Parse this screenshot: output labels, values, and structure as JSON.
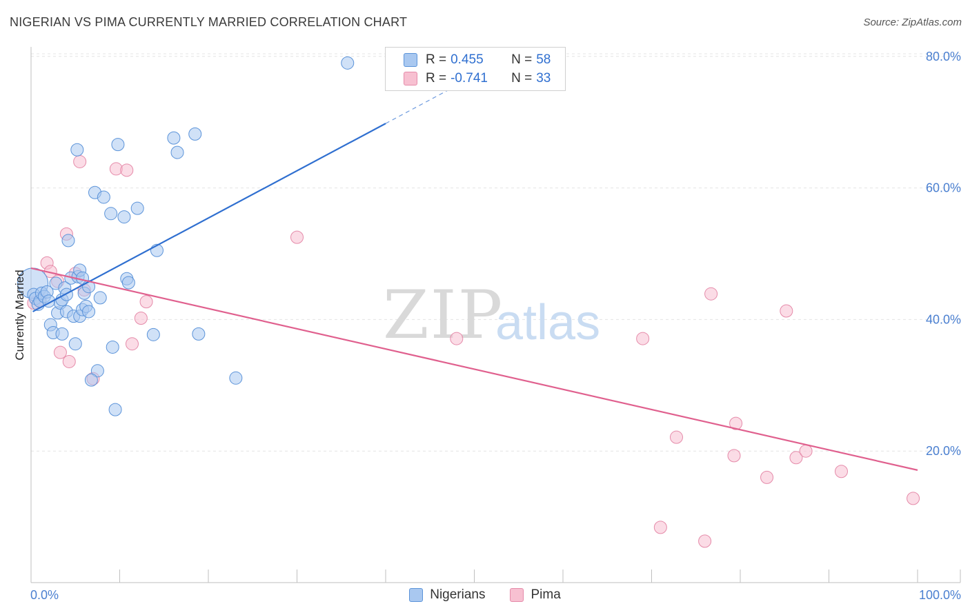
{
  "title": "NIGERIAN VS PIMA CURRENTLY MARRIED CORRELATION CHART",
  "source": "Source: ZipAtlas.com",
  "watermark": {
    "zip": "ZIP",
    "atlas": "atlas"
  },
  "colors": {
    "blue_fill": "#a9c8f0",
    "blue_stroke": "#5b93d9",
    "blue_line": "#2f6fd0",
    "pink_fill": "#f7c0d1",
    "pink_stroke": "#e58aa9",
    "pink_line": "#e0608e",
    "grid": "#e4e4e4",
    "tick_text": "#4a7fd0"
  },
  "legend": {
    "rows": [
      {
        "r_label": "R =",
        "r_value": "0.455",
        "n_label": "N =",
        "n_value": "58"
      },
      {
        "r_label": "R =",
        "r_value": "-0.741",
        "n_label": "N =",
        "n_value": "33"
      }
    ]
  },
  "bottom_legend": {
    "series1": "Nigerians",
    "series2": "Pima"
  },
  "chart_data": {
    "type": "scatter",
    "title": "NIGERIAN VS PIMA CURRENTLY MARRIED CORRELATION CHART",
    "xlabel": "",
    "ylabel": "Currently Married",
    "xlim": [
      0,
      100
    ],
    "ylim": [
      0,
      82
    ],
    "x_tick_labels": [
      "0.0%",
      "100.0%"
    ],
    "y_ticks": [
      20,
      40,
      60,
      80
    ],
    "y_tick_labels": [
      "20.0%",
      "40.0%",
      "60.0%",
      "80.0%"
    ],
    "series": [
      {
        "name": "Nigerians",
        "trend": {
          "x0": 0.2,
          "y0": 41.2,
          "x1": 40.0,
          "y1": 69.8,
          "dash_x1": 50.0,
          "dash_y1": 77.0
        },
        "points": [
          [
            0.2,
            45.5,
            22
          ],
          [
            0.3,
            43.8,
            9
          ],
          [
            0.5,
            43.2,
            9
          ],
          [
            0.8,
            42.3,
            9
          ],
          [
            1.0,
            42.8,
            9
          ],
          [
            1.2,
            44.0,
            9
          ],
          [
            1.5,
            43.5,
            9
          ],
          [
            1.8,
            44.2,
            9
          ],
          [
            2.0,
            42.8,
            9
          ],
          [
            2.2,
            39.2,
            9
          ],
          [
            2.5,
            38.0,
            9
          ],
          [
            2.8,
            45.5,
            9
          ],
          [
            3.0,
            41.0,
            9
          ],
          [
            3.3,
            42.5,
            9
          ],
          [
            3.5,
            43.0,
            9
          ],
          [
            3.5,
            37.8,
            9
          ],
          [
            3.8,
            44.8,
            9
          ],
          [
            4.0,
            43.8,
            9
          ],
          [
            4.0,
            41.2,
            9
          ],
          [
            4.2,
            52.0,
            9
          ],
          [
            4.5,
            46.3,
            9
          ],
          [
            4.8,
            40.5,
            9
          ],
          [
            5.0,
            36.3,
            9
          ],
          [
            5.3,
            46.5,
            9
          ],
          [
            5.5,
            47.5,
            9
          ],
          [
            5.5,
            40.5,
            9
          ],
          [
            5.8,
            41.5,
            9
          ],
          [
            5.8,
            46.3,
            9
          ],
          [
            6.0,
            44.0,
            9
          ],
          [
            6.2,
            42.0,
            9
          ],
          [
            6.5,
            41.2,
            9
          ],
          [
            6.5,
            45.0,
            9
          ],
          [
            5.2,
            65.8,
            9
          ],
          [
            7.2,
            59.3,
            9
          ],
          [
            7.5,
            32.2,
            9
          ],
          [
            6.8,
            30.8,
            9
          ],
          [
            7.8,
            43.3,
            9
          ],
          [
            8.2,
            58.6,
            9
          ],
          [
            9.0,
            56.1,
            9
          ],
          [
            9.2,
            35.8,
            9
          ],
          [
            9.5,
            26.3,
            9
          ],
          [
            9.8,
            66.6,
            9
          ],
          [
            10.5,
            55.6,
            9
          ],
          [
            10.8,
            46.2,
            9
          ],
          [
            11.0,
            45.6,
            9
          ],
          [
            12.0,
            56.9,
            9
          ],
          [
            13.8,
            37.7,
            9
          ],
          [
            14.2,
            50.5,
            9
          ],
          [
            16.1,
            67.6,
            9
          ],
          [
            16.5,
            65.4,
            9
          ],
          [
            18.5,
            68.2,
            9
          ],
          [
            18.9,
            37.8,
            9
          ],
          [
            23.1,
            31.1,
            9
          ],
          [
            35.7,
            79.0,
            9
          ]
        ]
      },
      {
        "name": "Pima",
        "trend": {
          "x0": 0.0,
          "y0": 47.8,
          "x1": 100.0,
          "y1": 17.1
        },
        "points": [
          [
            0.3,
            42.5,
            9
          ],
          [
            1.0,
            43.0,
            9
          ],
          [
            1.8,
            48.6,
            9
          ],
          [
            2.2,
            47.3,
            9
          ],
          [
            3.0,
            45.8,
            9
          ],
          [
            3.3,
            35.0,
            9
          ],
          [
            4.0,
            53.0,
            9
          ],
          [
            4.3,
            33.6,
            9
          ],
          [
            5.0,
            47.0,
            9
          ],
          [
            5.5,
            64.0,
            9
          ],
          [
            6.0,
            44.5,
            9
          ],
          [
            7.0,
            31.0,
            9
          ],
          [
            9.6,
            62.9,
            9
          ],
          [
            10.8,
            62.7,
            9
          ],
          [
            11.4,
            36.3,
            9
          ],
          [
            12.4,
            40.2,
            9
          ],
          [
            13.0,
            42.7,
            9
          ],
          [
            30.0,
            52.5,
            9
          ],
          [
            48.0,
            37.1,
            9
          ],
          [
            69.0,
            37.1,
            9
          ],
          [
            71.0,
            8.4,
            9
          ],
          [
            72.8,
            22.1,
            9
          ],
          [
            76.0,
            6.3,
            9
          ],
          [
            76.7,
            43.9,
            9
          ],
          [
            79.3,
            19.3,
            9
          ],
          [
            79.5,
            24.2,
            9
          ],
          [
            83.0,
            16.0,
            9
          ],
          [
            85.2,
            41.3,
            9
          ],
          [
            86.3,
            19.0,
            9
          ],
          [
            87.4,
            20.0,
            9
          ],
          [
            91.4,
            16.9,
            9
          ],
          [
            99.5,
            12.8,
            9
          ]
        ]
      }
    ]
  }
}
